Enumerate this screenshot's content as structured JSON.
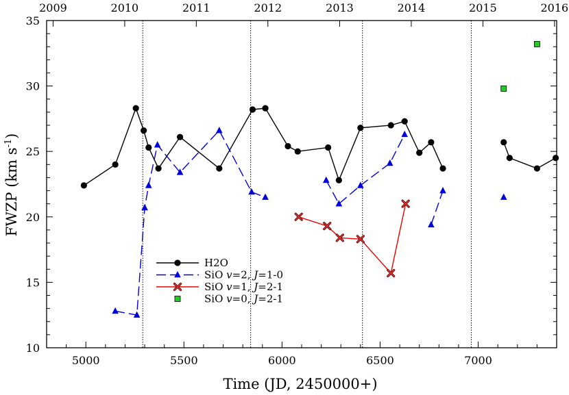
{
  "chart_data": {
    "type": "line",
    "title": "",
    "xlabel": "Time  (JD, 2450000+)",
    "ylabel_main": "FWZP  (km s",
    "ylabel_sup": "-1",
    "ylabel_close": ")",
    "xlim": [
      4800,
      7400
    ],
    "ylim": [
      10,
      35
    ],
    "x_ticks": [
      5000,
      5500,
      6000,
      6500,
      7000
    ],
    "x_minor_step": 100,
    "y_ticks": [
      10,
      15,
      20,
      25,
      30,
      35
    ],
    "y_minor_step": 1,
    "top_axis": {
      "labels": [
        "2009",
        "2010",
        "2011",
        "2012",
        "2013",
        "2014",
        "2015",
        "2016"
      ],
      "positions": [
        4833,
        5198,
        5563,
        5928,
        6294,
        6659,
        7024,
        7389
      ]
    },
    "vertical_lines": [
      5290,
      5840,
      6410,
      6965
    ],
    "series": [
      {
        "name": "H2O",
        "marker": "circle",
        "color": "#000000",
        "dash": "solid",
        "segments": [
          [
            [
              4990,
              22.4
            ],
            [
              5150,
              24.0
            ],
            [
              5255,
              28.3
            ],
            [
              5295,
              26.6
            ],
            [
              5320,
              25.3
            ],
            [
              5370,
              23.7
            ],
            [
              5480,
              26.1
            ],
            [
              5680,
              23.7
            ],
            [
              5850,
              28.2
            ],
            [
              5915,
              28.3
            ],
            [
              6030,
              25.4
            ],
            [
              6080,
              25.0
            ],
            [
              6235,
              25.3
            ],
            [
              6290,
              22.8
            ],
            [
              6400,
              26.8
            ],
            [
              6555,
              27.0
            ],
            [
              6625,
              27.3
            ],
            [
              6700,
              24.9
            ],
            [
              6760,
              25.7
            ],
            [
              6820,
              23.7
            ]
          ],
          [
            [
              7130,
              25.7
            ],
            [
              7160,
              24.5
            ],
            [
              7300,
              23.7
            ],
            [
              7395,
              24.5
            ]
          ]
        ]
      },
      {
        "name": "SiO v=2, J=1-0",
        "marker": "triangle",
        "color": "#0000dd",
        "dash": "dashed",
        "segments": [
          [
            [
              5150,
              12.8
            ],
            [
              5260,
              12.5
            ],
            [
              5300,
              20.7
            ],
            [
              5320,
              22.4
            ],
            [
              5365,
              25.5
            ],
            [
              5480,
              23.4
            ],
            [
              5680,
              26.6
            ],
            [
              5845,
              21.9
            ],
            [
              5915,
              21.5
            ]
          ],
          [
            [
              6225,
              22.8
            ],
            [
              6290,
              21.0
            ],
            [
              6400,
              22.4
            ],
            [
              6550,
              24.1
            ],
            [
              6625,
              26.3
            ]
          ],
          [
            [
              6760,
              19.4
            ],
            [
              6820,
              22.0
            ]
          ],
          [
            [
              7130,
              21.5
            ]
          ]
        ]
      },
      {
        "name": "SiO v=1, J=2-1",
        "marker": "x",
        "color": "#ee0000",
        "dash": "solid",
        "segments": [
          [
            [
              6085,
              20.0
            ],
            [
              6230,
              19.3
            ],
            [
              6295,
              18.4
            ],
            [
              6400,
              18.3
            ],
            [
              6555,
              15.7
            ],
            [
              6630,
              21.0
            ]
          ]
        ]
      },
      {
        "name": "SiO v=0, J=2-1",
        "marker": "square",
        "color": "#22cc22",
        "dash": "none",
        "segments": [
          [
            [
              7130,
              29.8
            ]
          ],
          [
            [
              7300,
              33.2
            ]
          ]
        ]
      }
    ],
    "legend": {
      "position": "lower-left",
      "entries": [
        {
          "label": "H2O",
          "series": 0
        },
        {
          "label_parts": [
            "SiO ",
            "v",
            "=2, ",
            "J",
            "=1-0"
          ],
          "series": 1
        },
        {
          "label_parts": [
            "SiO ",
            "v",
            "=1, ",
            "J",
            "=2-1"
          ],
          "series": 2
        },
        {
          "label_parts": [
            "SiO ",
            "v",
            "=0, ",
            "J",
            "=2-1"
          ],
          "series": 3
        }
      ]
    }
  }
}
